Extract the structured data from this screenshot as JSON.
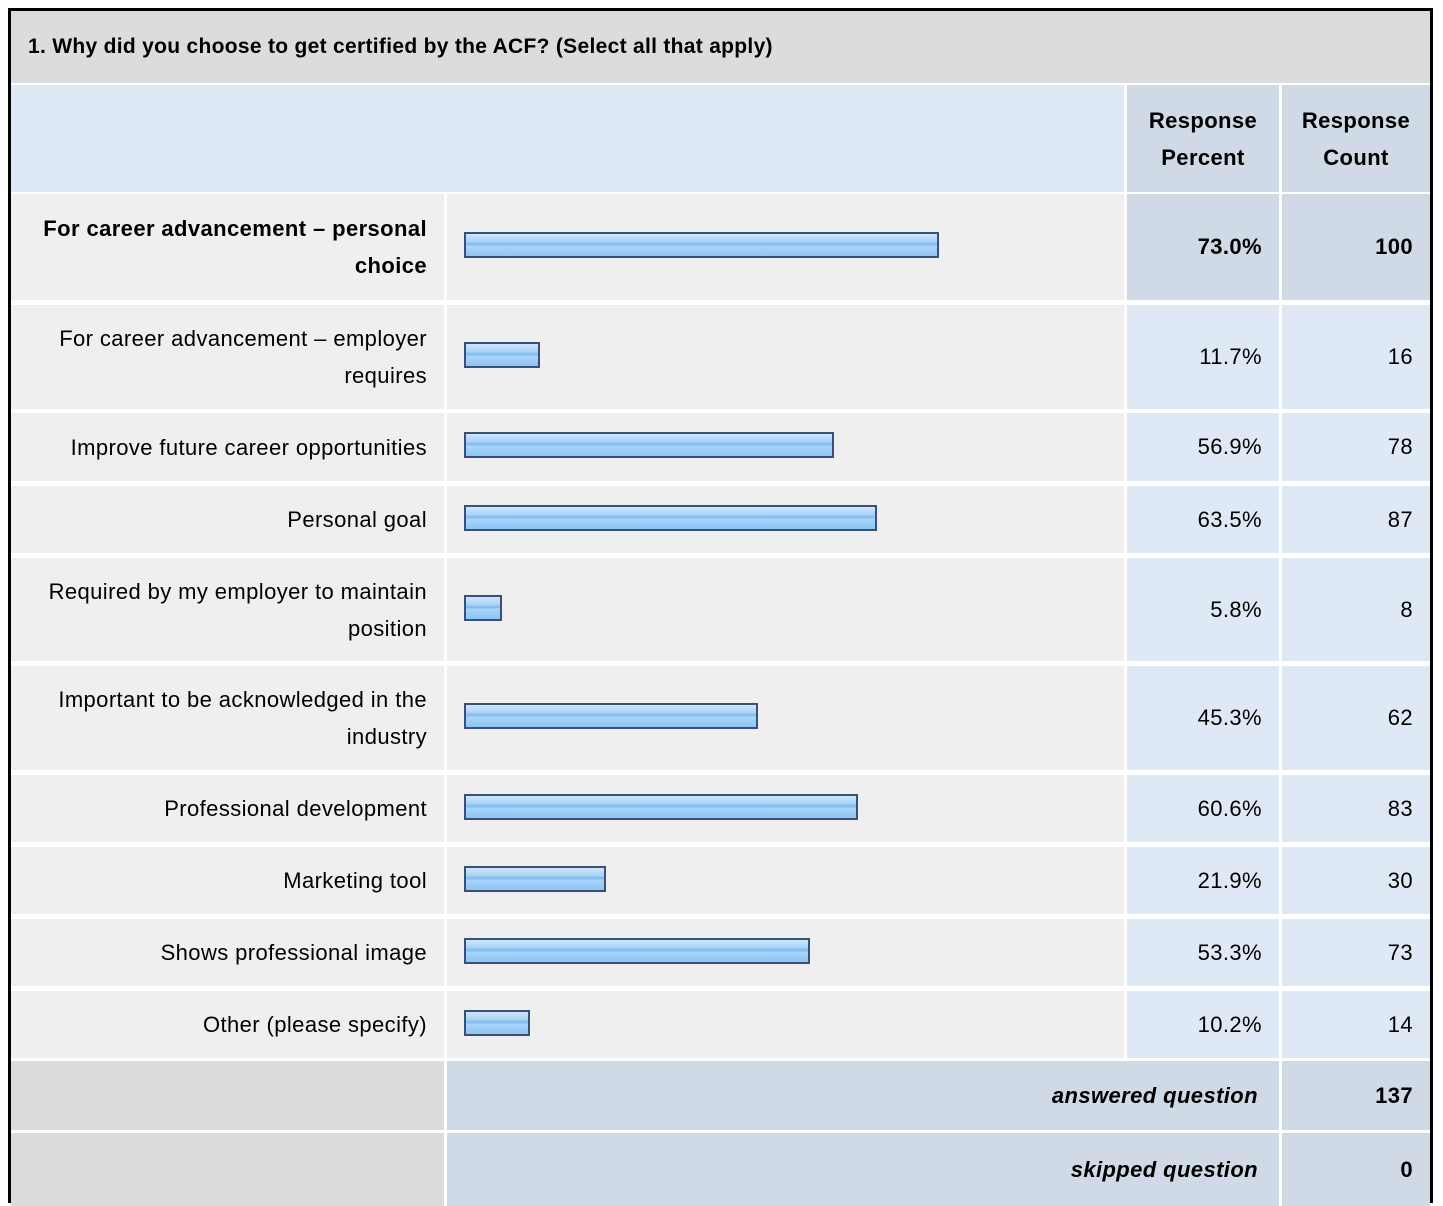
{
  "question": {
    "title": "1. Why did you choose to get certified by the ACF? (Select all that apply)"
  },
  "header": {
    "percent_label": "Response Percent",
    "count_label": "Response Count"
  },
  "chart_data": {
    "type": "bar",
    "orientation": "horizontal",
    "xlim": [
      0,
      100
    ],
    "categories": [
      "For career advancement – personal choice",
      "For career advancement – employer requires",
      "Improve future career opportunities",
      "Personal goal",
      "Required by my employer to maintain position",
      "Important to be acknowledged in the industry",
      "Professional development",
      "Marketing tool",
      "Shows professional image",
      "Other (please specify)"
    ],
    "series": [
      {
        "name": "Response Percent",
        "values": [
          73.0,
          11.7,
          56.9,
          63.5,
          5.8,
          45.3,
          60.6,
          21.9,
          53.3,
          10.2
        ]
      },
      {
        "name": "Response Count",
        "values": [
          100,
          16,
          78,
          87,
          8,
          62,
          83,
          30,
          73,
          14
        ]
      }
    ]
  },
  "rows": [
    {
      "label": "For career advancement – personal choice",
      "percent": "73.0%",
      "count": "100",
      "highlight": true
    },
    {
      "label": "For career advancement – employer requires",
      "percent": "11.7%",
      "count": "16",
      "highlight": false
    },
    {
      "label": "Improve future career opportunities",
      "percent": "56.9%",
      "count": "78",
      "highlight": false
    },
    {
      "label": "Personal goal",
      "percent": "63.5%",
      "count": "87",
      "highlight": false
    },
    {
      "label": "Required by my employer to maintain position",
      "percent": "5.8%",
      "count": "8",
      "highlight": false
    },
    {
      "label": "Important to be acknowledged in the industry",
      "percent": "45.3%",
      "count": "62",
      "highlight": false
    },
    {
      "label": "Professional development",
      "percent": "60.6%",
      "count": "83",
      "highlight": false
    },
    {
      "label": "Marketing tool",
      "percent": "21.9%",
      "count": "30",
      "highlight": false
    },
    {
      "label": "Shows professional image",
      "percent": "53.3%",
      "count": "73",
      "highlight": false
    },
    {
      "label": "Other (please specify)",
      "percent": "10.2%",
      "count": "14",
      "highlight": false
    }
  ],
  "footer": {
    "answered_label": "answered question",
    "answered_value": "137",
    "skipped_label": "skipped question",
    "skipped_value": "0"
  },
  "colors": {
    "title_bg": "#dcdcdc",
    "header_bg": "#dfe9f5",
    "highlight_bg": "#cfdae6",
    "label_bg": "#efefef",
    "bar_border": "#3a4f7a",
    "bar_fill": "#8ec5f4"
  }
}
